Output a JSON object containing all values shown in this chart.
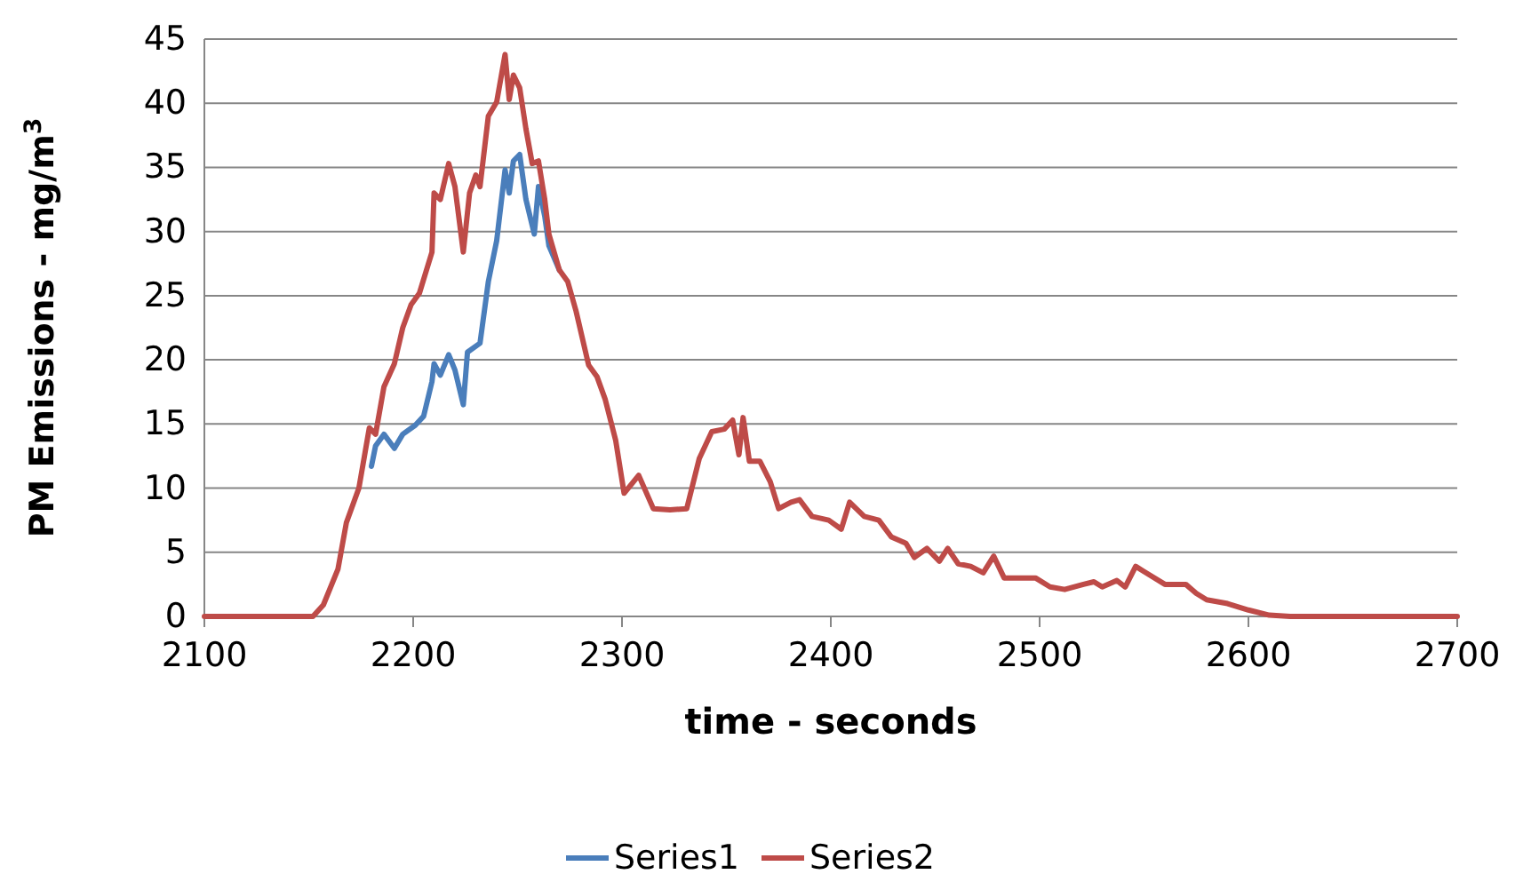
{
  "chart_data": {
    "type": "line",
    "xlabel": "time - seconds",
    "ylabel": "PM Emissions - mg/m$^{3}$",
    "xlim": [
      2100,
      2700
    ],
    "xticks": [
      2100,
      2200,
      2300,
      2400,
      2500,
      2600,
      2700
    ],
    "ylim": [
      0,
      45
    ],
    "yticks": [
      0,
      5,
      10,
      15,
      20,
      25,
      30,
      35,
      40,
      45
    ],
    "grid": "y",
    "legend": "bottom",
    "marker": "none",
    "line_style": "solid",
    "series": [
      {
        "name": "Series1",
        "color": "#4a7ebb",
        "x": [
          2180,
          2182,
          2186,
          2191,
          2195,
          2201,
          2205,
          2209,
          2210,
          2213,
          2217,
          2220,
          2224,
          2226,
          2232,
          2236,
          2240,
          2244,
          2246,
          2248,
          2251,
          2254,
          2258,
          2260,
          2263,
          2265,
          2270
        ],
        "values": [
          11.7,
          13.3,
          14.2,
          13.1,
          14.2,
          14.9,
          15.6,
          18.3,
          19.7,
          18.8,
          20.4,
          19.2,
          16.5,
          20.6,
          21.3,
          26.1,
          29.3,
          34.8,
          33,
          35.5,
          36,
          32.5,
          29.8,
          33.5,
          31.2,
          28.9,
          27
        ]
      },
      {
        "name": "Series2",
        "color": "#be4b48",
        "x": [
          2100,
          2152,
          2157,
          2164,
          2168,
          2174,
          2179,
          2182,
          2186,
          2191,
          2195,
          2199,
          2203,
          2206,
          2209,
          2210,
          2213,
          2217,
          2220,
          2224,
          2227,
          2230,
          2232,
          2236,
          2240,
          2244,
          2246,
          2248,
          2251,
          2254,
          2257,
          2260,
          2263,
          2265,
          2270,
          2274,
          2278,
          2284,
          2288,
          2292,
          2297,
          2301,
          2308,
          2315,
          2323,
          2331,
          2337,
          2343,
          2349,
          2353,
          2356,
          2358,
          2361,
          2366,
          2371,
          2375,
          2381,
          2385,
          2391,
          2399,
          2405,
          2409,
          2416,
          2423,
          2429,
          2436,
          2440,
          2446,
          2452,
          2456,
          2461,
          2467,
          2473,
          2478,
          2483,
          2490,
          2498,
          2505,
          2512,
          2521,
          2526,
          2530,
          2537,
          2541,
          2546,
          2550,
          2560,
          2570,
          2575,
          2580,
          2590,
          2600,
          2610,
          2620,
          2700
        ],
        "values": [
          0,
          0,
          0.9,
          3.7,
          7.3,
          10,
          14.7,
          14.2,
          17.9,
          19.7,
          22.5,
          24.3,
          25.2,
          26.8,
          28.4,
          33,
          32.5,
          35.3,
          33.5,
          28.4,
          33,
          34.4,
          33.5,
          39,
          40.1,
          43.8,
          40.3,
          42.2,
          41.2,
          38,
          35.3,
          35.5,
          32.5,
          29.8,
          27,
          26.1,
          23.8,
          19.6,
          18.7,
          16.9,
          13.7,
          9.6,
          11,
          8.4,
          8.3,
          8.4,
          12.3,
          14.4,
          14.6,
          15.3,
          12.6,
          15.5,
          12.1,
          12.1,
          10.5,
          8.4,
          8.9,
          9.1,
          7.8,
          7.5,
          6.8,
          8.9,
          7.8,
          7.5,
          6.2,
          5.7,
          4.6,
          5.3,
          4.3,
          5.3,
          4.1,
          3.9,
          3.4,
          4.7,
          3,
          3,
          3,
          2.3,
          2.1,
          2.5,
          2.7,
          2.3,
          2.8,
          2.3,
          3.9,
          3.5,
          2.5,
          2.5,
          1.8,
          1.3,
          1,
          0.5,
          0.1,
          0,
          0
        ]
      }
    ]
  }
}
